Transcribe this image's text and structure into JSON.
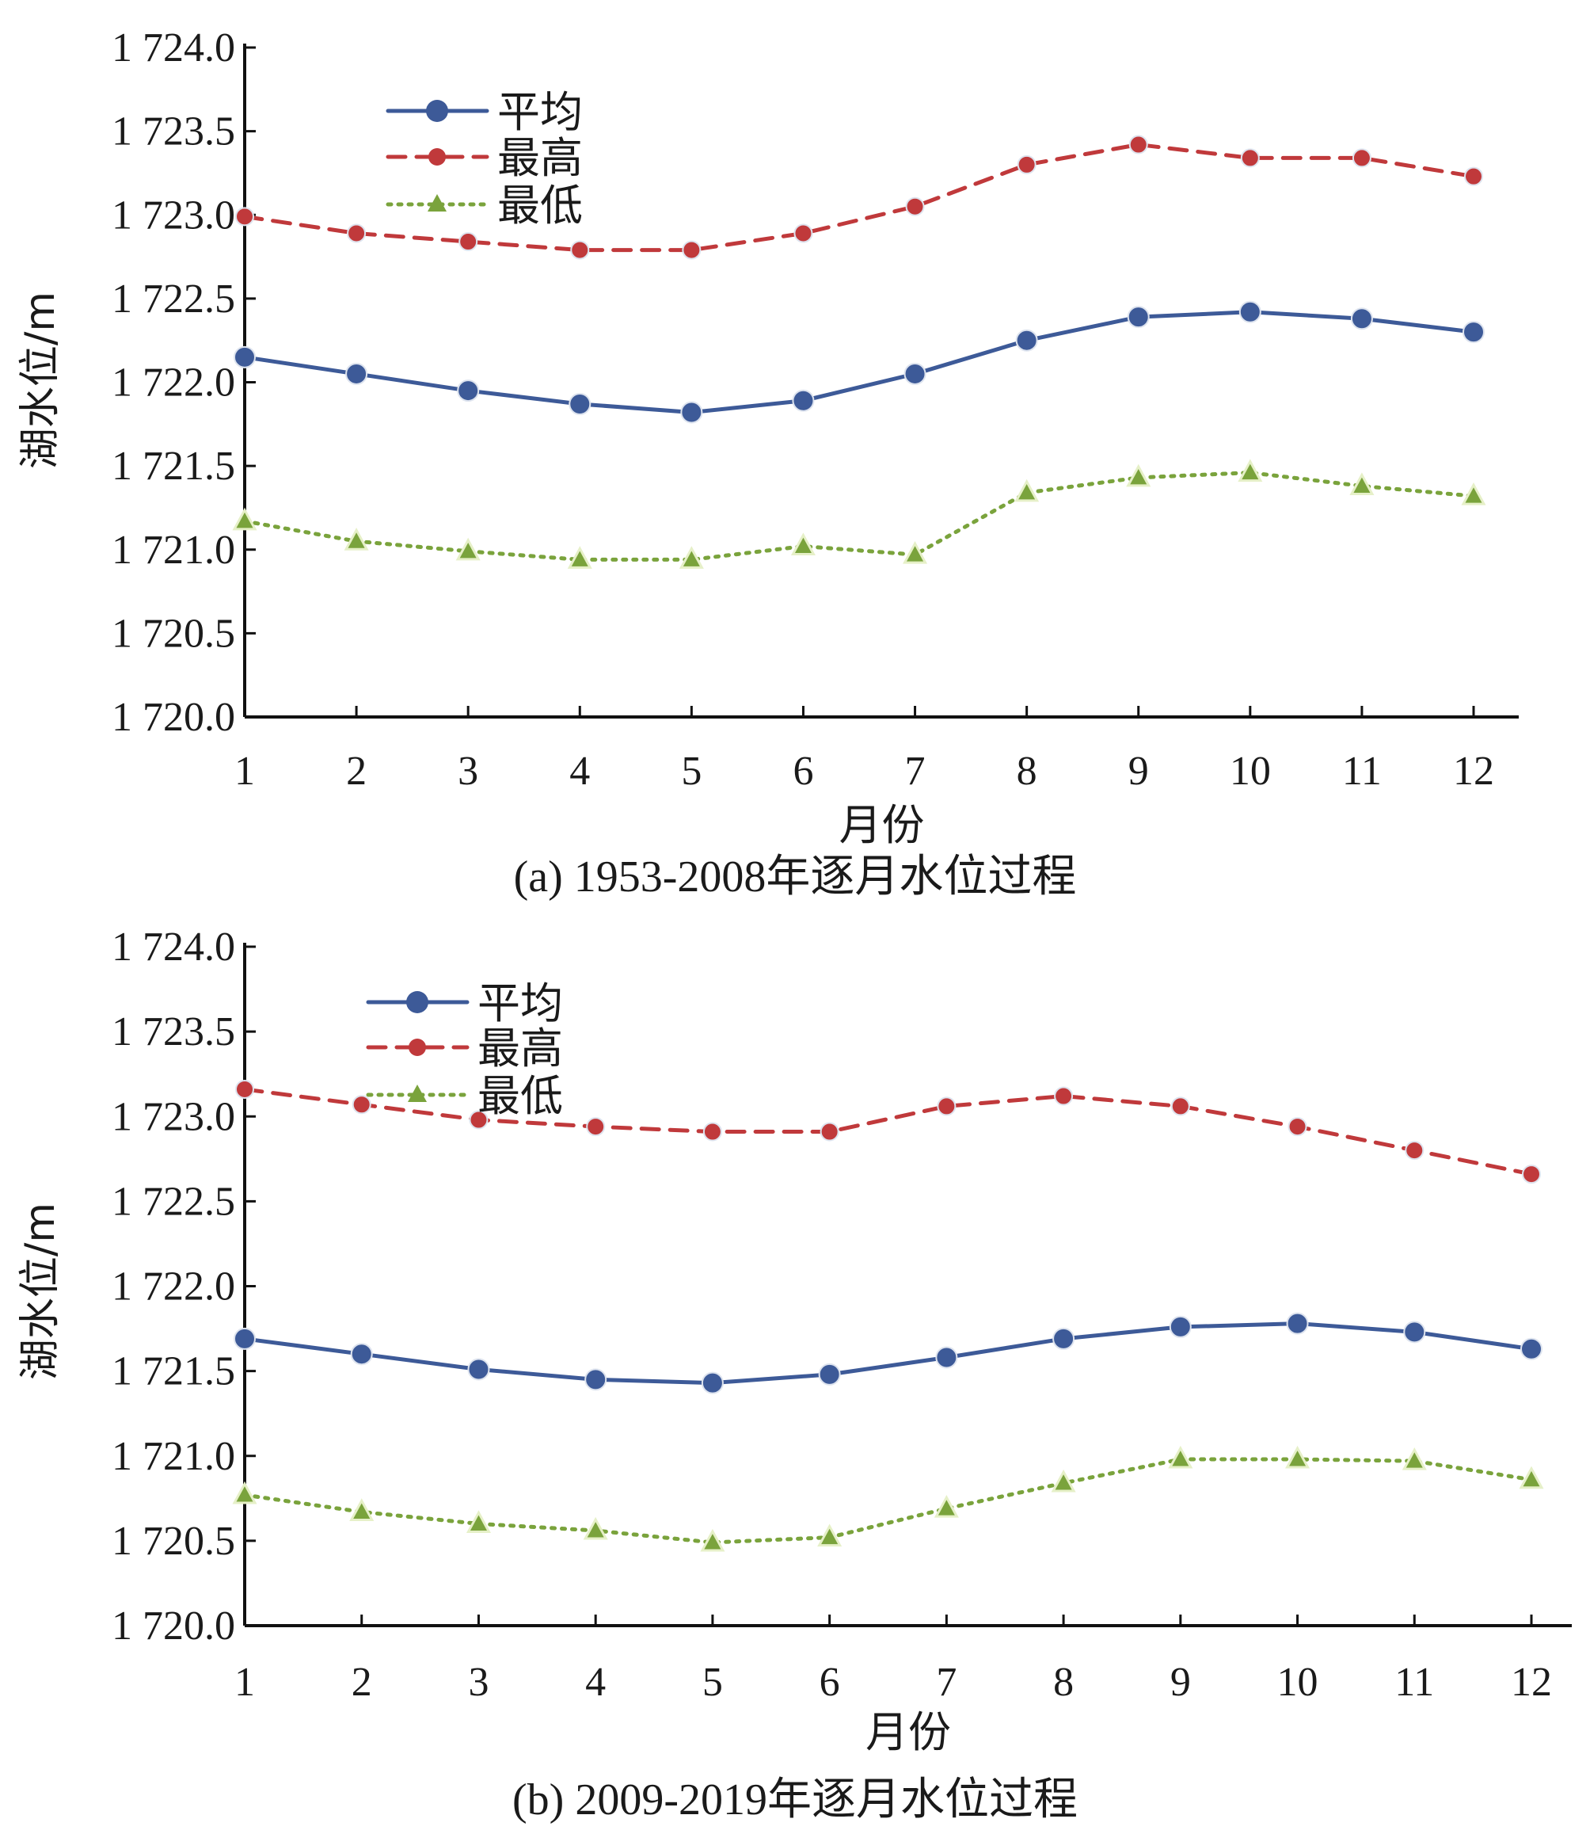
{
  "chart_data": [
    {
      "type": "line",
      "caption": "(a) 1953-2008年逐月水位过程",
      "xlabel": "月份",
      "ylabel": "湖水位/m",
      "categories": [
        "1",
        "2",
        "3",
        "4",
        "5",
        "6",
        "7",
        "8",
        "9",
        "10",
        "11",
        "12"
      ],
      "ylim": [
        1720.0,
        1724.0
      ],
      "yticks": [
        "1 720.0",
        "1 720.5",
        "1 721.0",
        "1 721.5",
        "1 722.0",
        "1 722.5",
        "1 723.0",
        "1 723.5",
        "1 724.0"
      ],
      "grid": false,
      "legend_position": "top-left",
      "series": [
        {
          "name": "平均",
          "color": "#3d5a98",
          "style": "solid",
          "marker": "circle",
          "values": [
            1722.15,
            1722.05,
            1721.95,
            1721.87,
            1721.82,
            1721.89,
            1722.05,
            1722.25,
            1722.39,
            1722.42,
            1722.38,
            1722.3
          ]
        },
        {
          "name": "最高",
          "color": "#c0393b",
          "style": "dashed",
          "marker": "circle",
          "values": [
            1722.99,
            1722.89,
            1722.84,
            1722.79,
            1722.79,
            1722.89,
            1723.05,
            1723.3,
            1723.42,
            1723.34,
            1723.34,
            1723.23
          ]
        },
        {
          "name": "最低",
          "color": "#7aa33c",
          "style": "dotted",
          "marker": "triangle",
          "values": [
            1721.17,
            1721.05,
            1720.99,
            1720.94,
            1720.94,
            1721.02,
            1720.97,
            1721.34,
            1721.43,
            1721.46,
            1721.38,
            1721.32
          ]
        }
      ]
    },
    {
      "type": "line",
      "caption": "(b) 2009-2019年逐月水位过程",
      "xlabel": "月份",
      "ylabel": "湖水位/m",
      "categories": [
        "1",
        "2",
        "3",
        "4",
        "5",
        "6",
        "7",
        "8",
        "9",
        "10",
        "11",
        "12"
      ],
      "ylim": [
        1720.0,
        1724.0
      ],
      "yticks": [
        "1 720.0",
        "1 720.5",
        "1 721.0",
        "1 721.5",
        "1 722.0",
        "1 722.5",
        "1 723.0",
        "1 723.5",
        "1 724.0"
      ],
      "grid": false,
      "legend_position": "top-left",
      "series": [
        {
          "name": "平均",
          "color": "#3d5a98",
          "style": "solid",
          "marker": "circle",
          "values": [
            1721.69,
            1721.6,
            1721.51,
            1721.45,
            1721.43,
            1721.48,
            1721.58,
            1721.69,
            1721.76,
            1721.78,
            1721.73,
            1721.63
          ]
        },
        {
          "name": "最高",
          "color": "#c0393b",
          "style": "dashed",
          "marker": "circle",
          "values": [
            1723.16,
            1723.07,
            1722.98,
            1722.94,
            1722.91,
            1722.91,
            1723.06,
            1723.12,
            1723.06,
            1722.94,
            1722.8,
            1722.66
          ]
        },
        {
          "name": "最低",
          "color": "#7aa33c",
          "style": "dotted",
          "marker": "triangle",
          "values": [
            1720.77,
            1720.67,
            1720.6,
            1720.56,
            1720.49,
            1720.52,
            1720.69,
            1720.84,
            1720.98,
            1720.98,
            1720.97,
            1720.86
          ]
        }
      ]
    }
  ]
}
